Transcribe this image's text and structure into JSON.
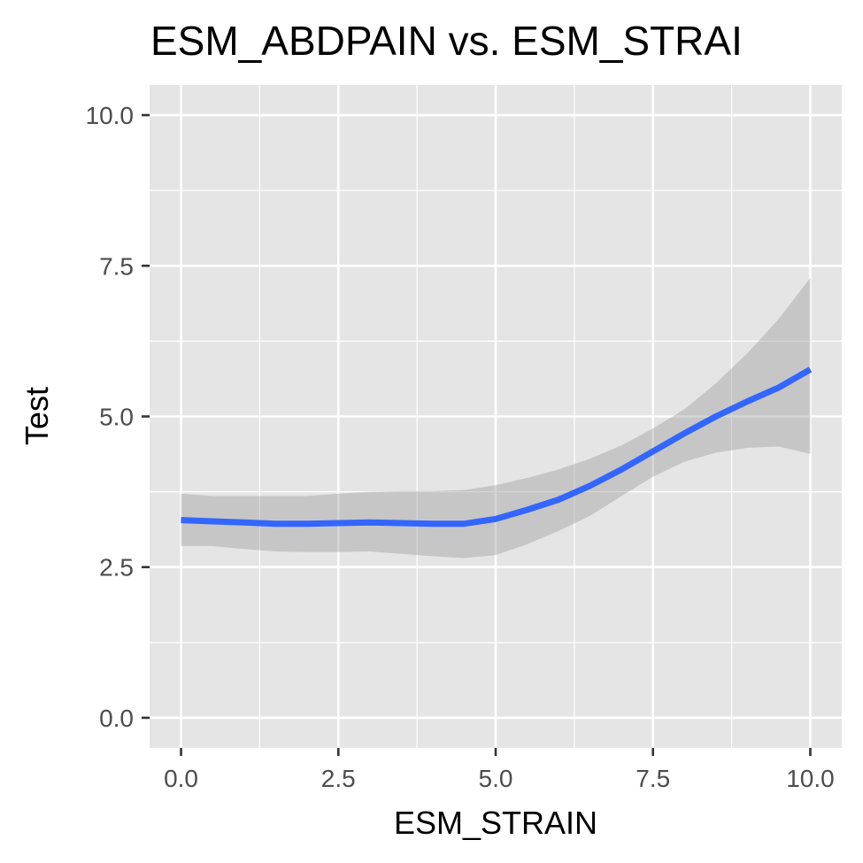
{
  "chart_data": {
    "type": "line",
    "title": "ESM_ABDPAIN vs. ESM_STRAI",
    "xlabel": "ESM_STRAIN",
    "ylabel": "Test",
    "xlim": [
      -0.5,
      10.5
    ],
    "ylim": [
      -0.5,
      10.5
    ],
    "x_ticks": [
      "0.0",
      "2.5",
      "5.0",
      "7.5",
      "10.0"
    ],
    "y_ticks": [
      "0.0",
      "2.5",
      "5.0",
      "7.5",
      "10.0"
    ],
    "grid": true,
    "legend": "none",
    "series": [
      {
        "x": [
          0,
          0.5,
          1,
          1.5,
          2,
          2.5,
          3,
          3.5,
          4,
          4.5,
          5,
          5.5,
          6,
          6.5,
          7,
          7.5,
          8,
          8.5,
          9,
          9.5,
          10
        ],
        "y": [
          3.28,
          3.26,
          3.24,
          3.22,
          3.22,
          3.23,
          3.24,
          3.23,
          3.22,
          3.22,
          3.3,
          3.45,
          3.62,
          3.85,
          4.12,
          4.42,
          4.72,
          5.0,
          5.25,
          5.48,
          5.78
        ],
        "ci_lower": [
          2.85,
          2.85,
          2.8,
          2.76,
          2.75,
          2.75,
          2.76,
          2.72,
          2.68,
          2.65,
          2.7,
          2.88,
          3.1,
          3.35,
          3.68,
          4.0,
          4.25,
          4.4,
          4.48,
          4.5,
          4.38
        ],
        "ci_upper": [
          3.72,
          3.68,
          3.68,
          3.68,
          3.68,
          3.72,
          3.75,
          3.76,
          3.76,
          3.78,
          3.86,
          3.98,
          4.12,
          4.3,
          4.52,
          4.8,
          5.12,
          5.55,
          6.05,
          6.62,
          7.3
        ]
      }
    ],
    "colors": {
      "line": "#3366ff",
      "ribbon": "#999999",
      "panel": "#e5e5e5",
      "grid": "#ffffff",
      "tick_text": "#4d4d4d"
    }
  }
}
